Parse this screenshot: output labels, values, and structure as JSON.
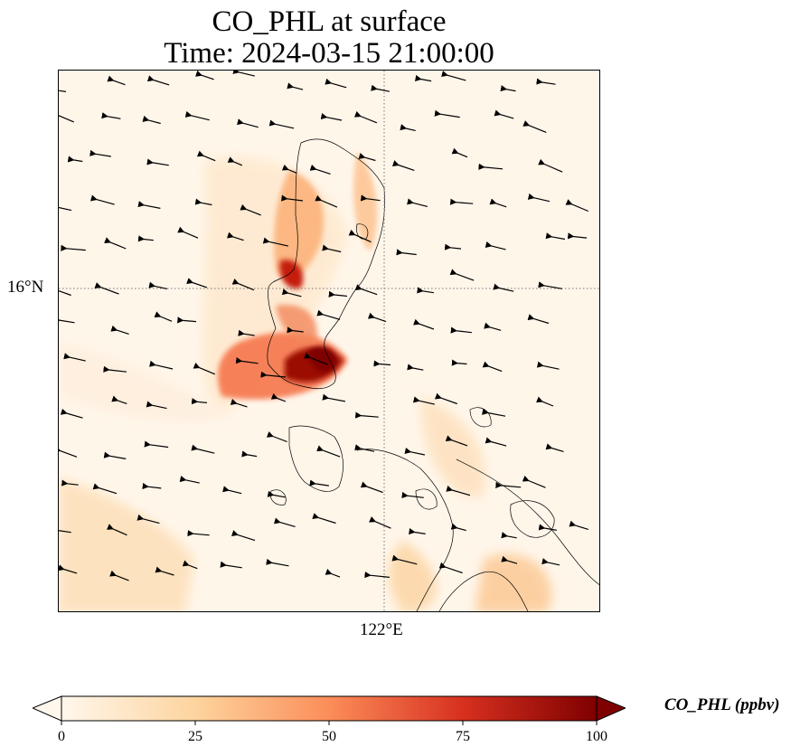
{
  "title": {
    "line1": "CO_PHL at surface",
    "line2": "Time: 2024-03-15 21:00:00"
  },
  "axes": {
    "lat_label": "16°N",
    "lon_label": "122°E"
  },
  "colorbar": {
    "label": "CO_PHL (ppbv)",
    "min": 0,
    "max": 100,
    "ticks": [
      "0",
      "25",
      "50",
      "75",
      "100"
    ],
    "colormap": "OrRd",
    "extend": "both",
    "stops": [
      "#fff7ec",
      "#fdd49e",
      "#fc8d59",
      "#d7301f",
      "#7f0000"
    ]
  },
  "map": {
    "gridlines": "dotted",
    "field": "CO concentration",
    "wind_vectors": true
  }
}
